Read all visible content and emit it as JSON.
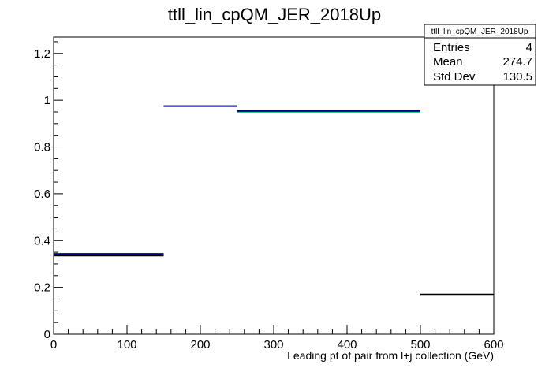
{
  "chart_data": {
    "type": "step",
    "title": "ttll_lin_cpQM_JER_2018Up",
    "xlabel": "Leading pt of pair from l+j collection (GeV)",
    "ylabel": "",
    "xlim": [
      0,
      600
    ],
    "ylim": [
      0,
      1.27
    ],
    "x_ticks": [
      0,
      100,
      200,
      300,
      400,
      500,
      600
    ],
    "y_ticks": [
      0,
      0.2,
      0.4,
      0.6,
      0.8,
      1,
      1.2
    ],
    "y_tick_labels": [
      "0",
      "0.2",
      "0.4",
      "0.6",
      "0.8",
      "1",
      "1.2"
    ],
    "grid": false,
    "bin_edges": [
      0,
      150,
      250,
      500,
      600
    ],
    "series": [
      {
        "color": "#000000",
        "values": [
          0.335,
          0.975,
          0.953,
          0.17
        ]
      },
      {
        "color": "#000080",
        "values": [
          0.343,
          0.975,
          0.955,
          null
        ]
      },
      {
        "color": "#00cc66",
        "values": [
          null,
          null,
          0.947,
          null
        ]
      }
    ],
    "stats_box": {
      "title": "ttll_lin_cpQM_JER_2018Up",
      "rows": [
        {
          "label": "Entries",
          "value": "4"
        },
        {
          "label": "Mean",
          "value": "274.7"
        },
        {
          "label": "Std Dev",
          "value": "130.5"
        }
      ]
    }
  }
}
